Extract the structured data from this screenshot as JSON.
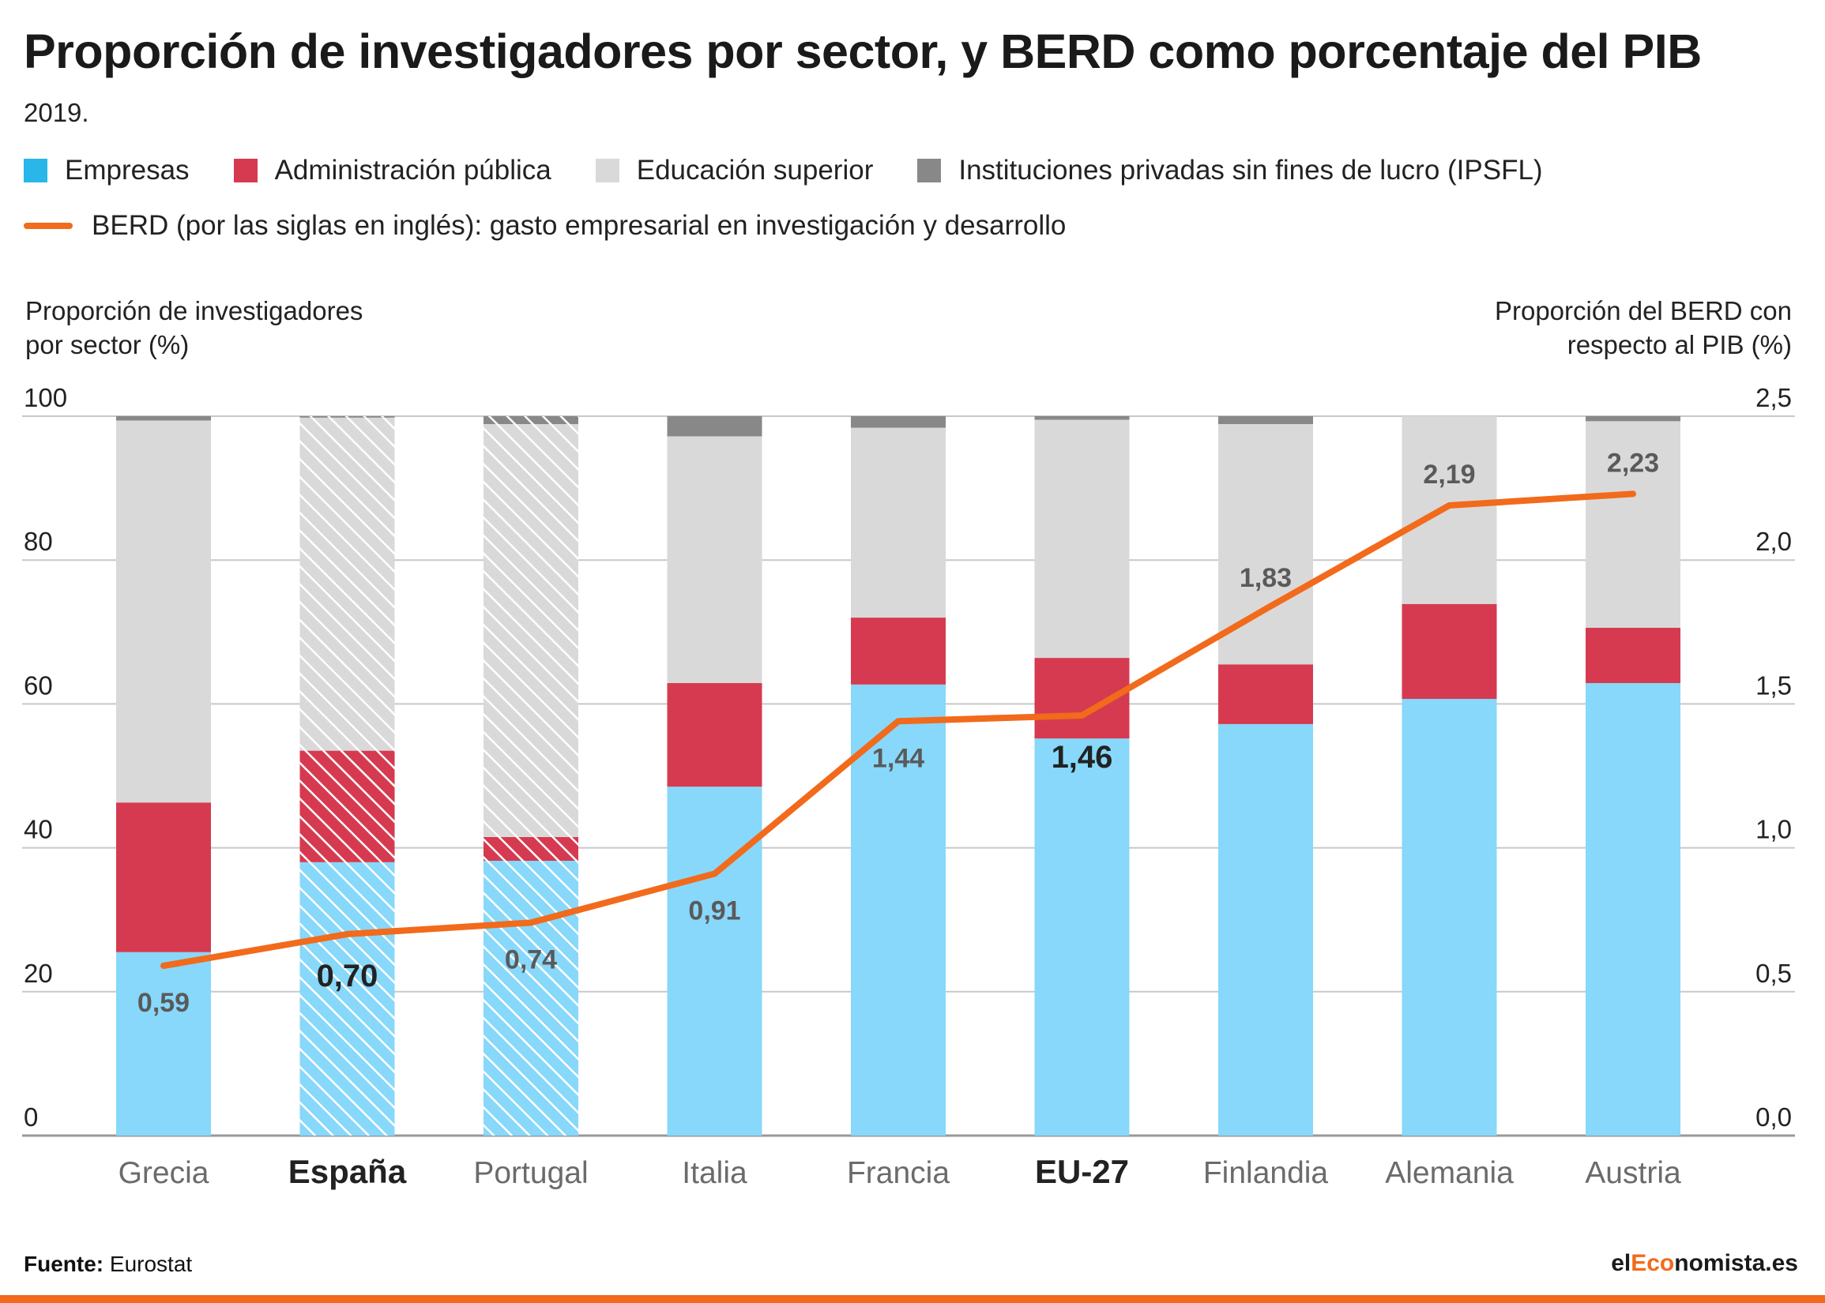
{
  "header": {
    "title": "Proporción de investigadores por sector, y BERD como porcentaje del PIB",
    "subtitle": "2019."
  },
  "legend": {
    "items": [
      {
        "label": "Empresas",
        "color": "#29b6e8"
      },
      {
        "label": "Administración pública",
        "color": "#d63a50"
      },
      {
        "label": "Educación superior",
        "color": "#d9d9d9"
      },
      {
        "label": "Instituciones privadas sin fines de lucro (IPSFL)",
        "color": "#888888"
      }
    ],
    "line": {
      "label": "BERD (por las siglas en inglés): gasto empresarial en investigación y desarrollo",
      "color": "#f26a1b"
    }
  },
  "axes": {
    "left_title_line1": "Proporción de investigadores",
    "left_title_line2": "por sector (%)",
    "right_title_line1": "Proporción del BERD con",
    "right_title_line2": "respecto al PIB (%)"
  },
  "chart_data": {
    "type": "bar",
    "stacked": true,
    "categories": [
      "Grecia",
      "España",
      "Portugal",
      "Italia",
      "Francia",
      "EU-27",
      "Finlandia",
      "Alemania",
      "Austria"
    ],
    "highlight_categories": [
      "España",
      "EU-27"
    ],
    "hatched_categories": [
      "España",
      "Portugal"
    ],
    "series": [
      {
        "name": "Empresas",
        "color": "#87d8fa",
        "values": [
          25.5,
          38.0,
          38.2,
          48.5,
          62.7,
          55.2,
          57.2,
          60.7,
          62.9
        ]
      },
      {
        "name": "Administración pública",
        "color": "#d63a50",
        "values": [
          20.8,
          15.5,
          3.3,
          14.4,
          9.3,
          11.2,
          8.3,
          13.2,
          7.7
        ]
      },
      {
        "name": "Educación superior",
        "color": "#d9d9d9",
        "values": [
          53.1,
          46.3,
          57.4,
          34.3,
          26.4,
          33.1,
          33.4,
          26.1,
          28.7
        ]
      },
      {
        "name": "Instituciones privadas sin fines de lucro (IPSFL)",
        "color": "#888888",
        "values": [
          0.6,
          0.2,
          1.1,
          2.8,
          1.6,
          0.5,
          1.1,
          0.0,
          0.7
        ]
      }
    ],
    "line_series": {
      "name": "BERD (por las siglas en inglés): gasto empresarial en investigación y desarrollo",
      "axis": "right",
      "color": "#f26a1b",
      "values": [
        0.59,
        0.7,
        0.74,
        0.91,
        1.44,
        1.46,
        1.83,
        2.19,
        2.23
      ],
      "labels": [
        "0,59",
        "0,70",
        "0,74",
        "0,91",
        "1,44",
        "1,46",
        "1,83",
        "2,19",
        "2,23"
      ]
    },
    "ylim": [
      0,
      100
    ],
    "y_ticks": [
      "0",
      "20",
      "40",
      "60",
      "80",
      "100"
    ],
    "y2lim": [
      0,
      2.5
    ],
    "y2_ticks": [
      "0,0",
      "0,5",
      "1,0",
      "1,5",
      "2,0",
      "2,5"
    ],
    "grid": true
  },
  "footer": {
    "source_label": "Fuente:",
    "source_value": "Eurostat",
    "brand_prefix": "el",
    "brand_mid": "Eco",
    "brand_suffix": "nomista.es",
    "bar_color": "#f26a1b"
  }
}
